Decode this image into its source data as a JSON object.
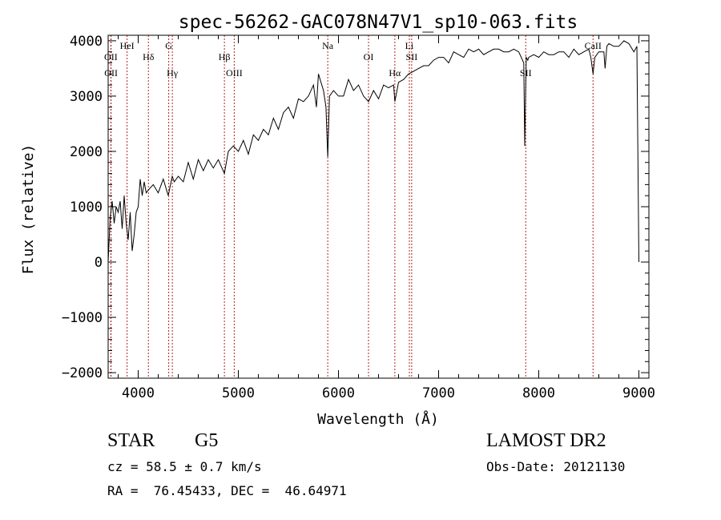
{
  "chart_data": {
    "type": "line",
    "title": "spec-56262-GAC078N47V1_sp10-063.fits",
    "xlabel": "Wavelength (Å)",
    "ylabel": "Flux (relative)",
    "xlim": [
      3700,
      9100
    ],
    "ylim": [
      -2100,
      4100
    ],
    "x_ticks": [
      4000,
      5000,
      6000,
      7000,
      8000,
      9000
    ],
    "x_tick_labels": [
      "4000",
      "5000",
      "6000",
      "7000",
      "8000",
      "9000"
    ],
    "y_ticks": [
      -2000,
      -1000,
      0,
      1000,
      2000,
      3000,
      4000
    ],
    "y_tick_labels": [
      "−2000",
      "−1000",
      "0",
      "1000",
      "2000",
      "3000",
      "4000"
    ],
    "series": [
      {
        "x": [
          3700,
          3720,
          3740,
          3760,
          3780,
          3800,
          3820,
          3840,
          3860,
          3880,
          3900,
          3920,
          3940,
          3960,
          3980,
          4000,
          4020,
          4040,
          4060,
          4080,
          4100,
          4150,
          4200,
          4250,
          4300,
          4340,
          4360,
          4400,
          4450,
          4500,
          4550,
          4600,
          4650,
          4700,
          4750,
          4800,
          4861,
          4900,
          4950,
          5000,
          5050,
          5100,
          5150,
          5200,
          5250,
          5300,
          5350,
          5400,
          5450,
          5500,
          5550,
          5600,
          5650,
          5700,
          5750,
          5780,
          5800,
          5850,
          5875,
          5893,
          5910,
          5950,
          6000,
          6050,
          6100,
          6150,
          6200,
          6250,
          6300,
          6350,
          6400,
          6450,
          6500,
          6550,
          6563,
          6600,
          6650,
          6700,
          6750,
          6800,
          6850,
          6900,
          6950,
          7000,
          7050,
          7100,
          7150,
          7200,
          7250,
          7300,
          7350,
          7400,
          7450,
          7500,
          7550,
          7600,
          7650,
          7700,
          7750,
          7800,
          7850,
          7860,
          7875,
          7890,
          7900,
          7950,
          8000,
          8050,
          8100,
          8150,
          8200,
          8250,
          8300,
          8350,
          8400,
          8450,
          8500,
          8520,
          8542,
          8560,
          8600,
          8650,
          8662,
          8680,
          8700,
          8750,
          8800,
          8850,
          8900,
          8950,
          8980,
          9000
        ],
        "y": [
          0,
          800,
          1100,
          700,
          1000,
          900,
          1100,
          600,
          1200,
          700,
          400,
          900,
          200,
          500,
          900,
          1000,
          1500,
          1200,
          1450,
          1250,
          1300,
          1400,
          1250,
          1500,
          1200,
          1550,
          1450,
          1550,
          1450,
          1800,
          1500,
          1850,
          1650,
          1850,
          1700,
          1850,
          1600,
          2000,
          2100,
          2000,
          2200,
          1950,
          2300,
          2200,
          2400,
          2300,
          2600,
          2400,
          2700,
          2800,
          2600,
          2950,
          2900,
          3000,
          3200,
          2800,
          3400,
          3100,
          2800,
          1900,
          3000,
          3100,
          3000,
          3000,
          3300,
          3100,
          3200,
          3000,
          2900,
          3100,
          2950,
          3200,
          3150,
          3200,
          2900,
          3250,
          3300,
          3400,
          3450,
          3500,
          3550,
          3550,
          3650,
          3700,
          3700,
          3600,
          3800,
          3750,
          3700,
          3850,
          3800,
          3850,
          3750,
          3800,
          3850,
          3850,
          3800,
          3800,
          3850,
          3800,
          3600,
          2100,
          3700,
          3650,
          3700,
          3750,
          3700,
          3800,
          3750,
          3750,
          3800,
          3800,
          3700,
          3850,
          3750,
          3800,
          3850,
          3700,
          3400,
          3700,
          3800,
          3800,
          3500,
          3900,
          3950,
          3900,
          3900,
          4000,
          3950,
          3800,
          3900,
          0
        ]
      }
    ],
    "lines": [
      {
        "label": "OII",
        "x": 3727
      },
      {
        "label": "OII",
        "x": 3729
      },
      {
        "label": "HeI",
        "x": 3889
      },
      {
        "label": "Hδ",
        "x": 4102
      },
      {
        "label": "Hγ",
        "x": 4341
      },
      {
        "label": "G",
        "x": 4305
      },
      {
        "label": "Hβ",
        "x": 4861
      },
      {
        "label": "OIII",
        "x": 4959
      },
      {
        "label": "Na",
        "x": 5893
      },
      {
        "label": "OI",
        "x": 6300
      },
      {
        "label": "Hα",
        "x": 6563
      },
      {
        "label": "Li",
        "x": 6708
      },
      {
        "label": "SII",
        "x": 6731
      },
      {
        "label": "SII",
        "x": 7870
      },
      {
        "label": "CaII",
        "x": 8542
      }
    ],
    "grid": false,
    "legend": "none"
  },
  "info": {
    "class_label": "STAR",
    "subclass": "G5",
    "survey": "LAMOST DR2",
    "cz": "cz = 58.5 ± 0.7 km/s",
    "obs_date": "Obs-Date: 20121130",
    "coords": "RA =  76.45433, DEC =  46.64971"
  },
  "colors": {
    "spectrum": "#000000",
    "line_marker": "#b22222",
    "axis": "#000000"
  }
}
